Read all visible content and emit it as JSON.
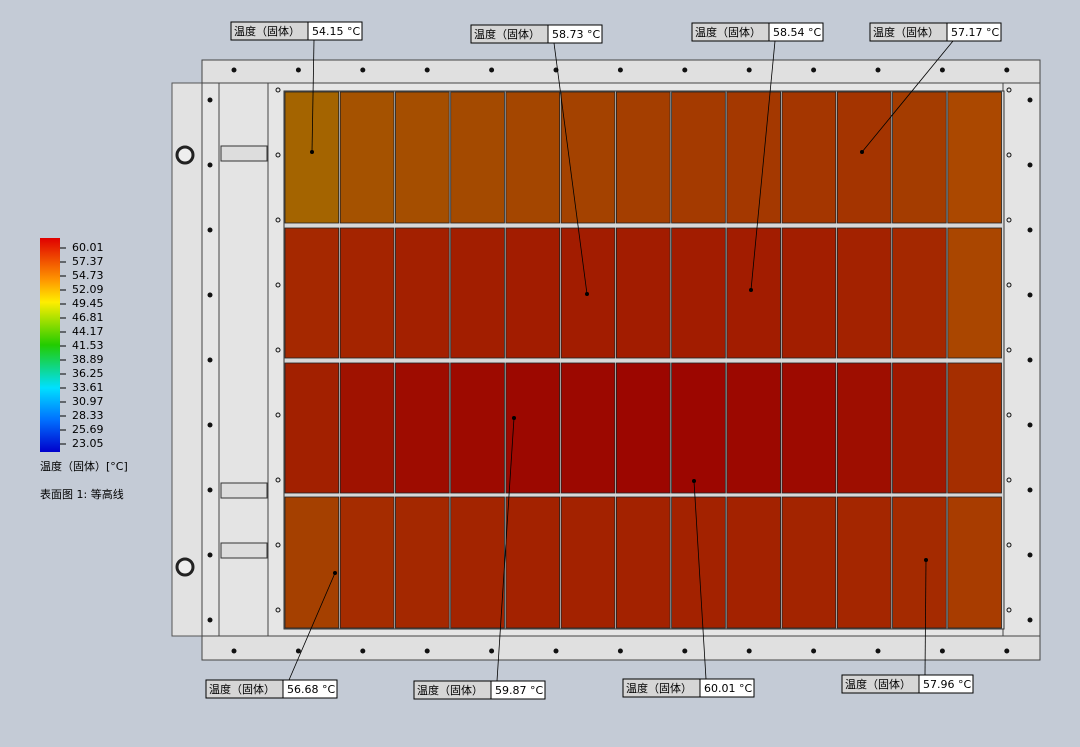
{
  "legend": {
    "ticks": [
      "60.01",
      "57.37",
      "54.73",
      "52.09",
      "49.45",
      "46.81",
      "44.17",
      "41.53",
      "38.89",
      "36.25",
      "33.61",
      "30.97",
      "28.33",
      "25.69",
      "23.05"
    ],
    "title": "温度（固体）[°C]",
    "subtitle": "表面图 1: 等高线"
  },
  "probes": [
    {
      "label": "温度（固体）",
      "value": "54.15 °C"
    },
    {
      "label": "温度（固体）",
      "value": "58.73 °C"
    },
    {
      "label": "温度（固体）",
      "value": "58.54 °C"
    },
    {
      "label": "温度（固体）",
      "value": "57.17 °C"
    },
    {
      "label": "温度（固体）",
      "value": "56.68 °C"
    },
    {
      "label": "温度（固体）",
      "value": "59.87 °C"
    },
    {
      "label": "温度（固体）",
      "value": "60.01 °C"
    },
    {
      "label": "温度（固体）",
      "value": "57.96 °C"
    }
  ]
}
